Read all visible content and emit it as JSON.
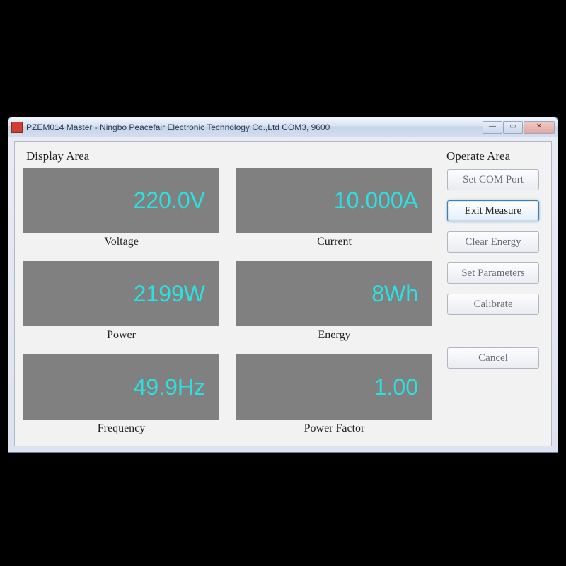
{
  "titlebar": {
    "title": "PZEM014 Master - Ningbo Peacefair Electronic Technology Co.,Ltd  COM3, 9600"
  },
  "display": {
    "title": "Display Area",
    "cells": [
      {
        "value": "220.0V",
        "label": "Voltage"
      },
      {
        "value": "10.000A",
        "label": "Current"
      },
      {
        "value": "2199W",
        "label": "Power"
      },
      {
        "value": "8Wh",
        "label": "Energy"
      },
      {
        "value": "49.9Hz",
        "label": "Frequency"
      },
      {
        "value": "1.00",
        "label": "Power Factor"
      }
    ]
  },
  "operate": {
    "title": "Operate Area",
    "buttons": {
      "set_com": "Set COM Port",
      "exit": "Exit Measure",
      "clear": "Clear Energy",
      "set_params": "Set Parameters",
      "calibrate": "Calibrate",
      "cancel": "Cancel"
    }
  },
  "style": {
    "page_bg": "#000000",
    "window_bg": "#e8ecf5",
    "client_bg": "#f2f2f2",
    "meter_bg": "#808080",
    "meter_text": "#2de0e0",
    "meter_fontsize": 32,
    "label_font": "Times New Roman",
    "button_border": "#b0b6c2",
    "button_active_border": "#3c7fb1"
  }
}
